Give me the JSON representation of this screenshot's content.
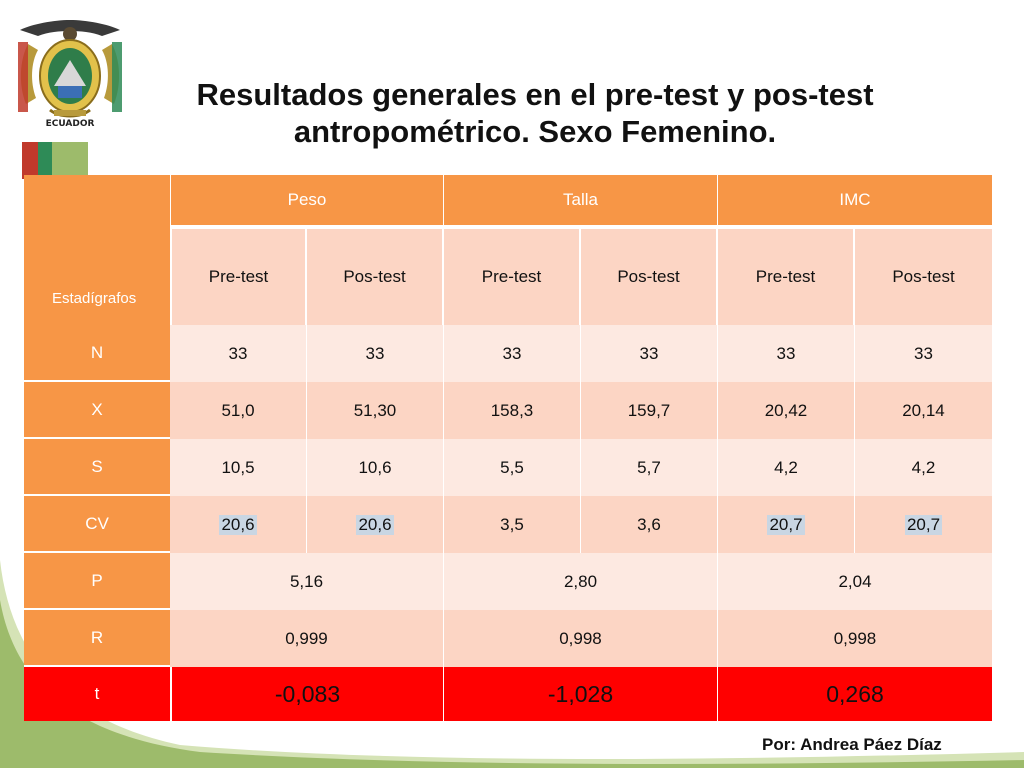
{
  "title_line1": "Resultados generales en el pre-test y pos-test",
  "title_line2": "antropométrico. Sexo Femenino.",
  "emblem": {
    "text": "ECUADOR",
    "icon": "ecuador-coat-of-arms-icon"
  },
  "table": {
    "corner_label": "Estadígrafos",
    "groups": [
      "Peso",
      "Talla",
      "IMC"
    ],
    "subheaders": [
      "Pre-test",
      "Pos-test",
      "Pre-test",
      "Pos-test",
      "Pre-test",
      "Pos-test"
    ],
    "rows": [
      {
        "label": "N",
        "values": [
          "33",
          "33",
          "33",
          "33",
          "33",
          "33"
        ]
      },
      {
        "label": "X",
        "values": [
          "51,0",
          "51,30",
          "158,3",
          "159,7",
          "20,42",
          "20,14"
        ]
      },
      {
        "label": "S",
        "values": [
          "10,5",
          "10,6",
          "5,5",
          "5,7",
          "4,2",
          "4,2"
        ]
      },
      {
        "label": "CV",
        "values": [
          "20,6",
          "20,6",
          "3,5",
          "3,6",
          "20,7",
          "20,7"
        ]
      }
    ],
    "merged_rows": [
      {
        "label": "P",
        "values": [
          "5,16",
          "2,80",
          "2,04"
        ]
      },
      {
        "label": "R",
        "values": [
          "0,999",
          "0,998",
          "0,998"
        ]
      },
      {
        "label": "t",
        "values": [
          "-0,083",
          "-1,028",
          "0,268"
        ]
      }
    ]
  },
  "author": "Por: Andrea Páez Díaz",
  "colors": {
    "header": "#f79646",
    "row_light": "#fde9e1",
    "row_dark": "#fcd5c4",
    "t_row": "#ff0000",
    "accent_curve": "#8aa65e"
  }
}
